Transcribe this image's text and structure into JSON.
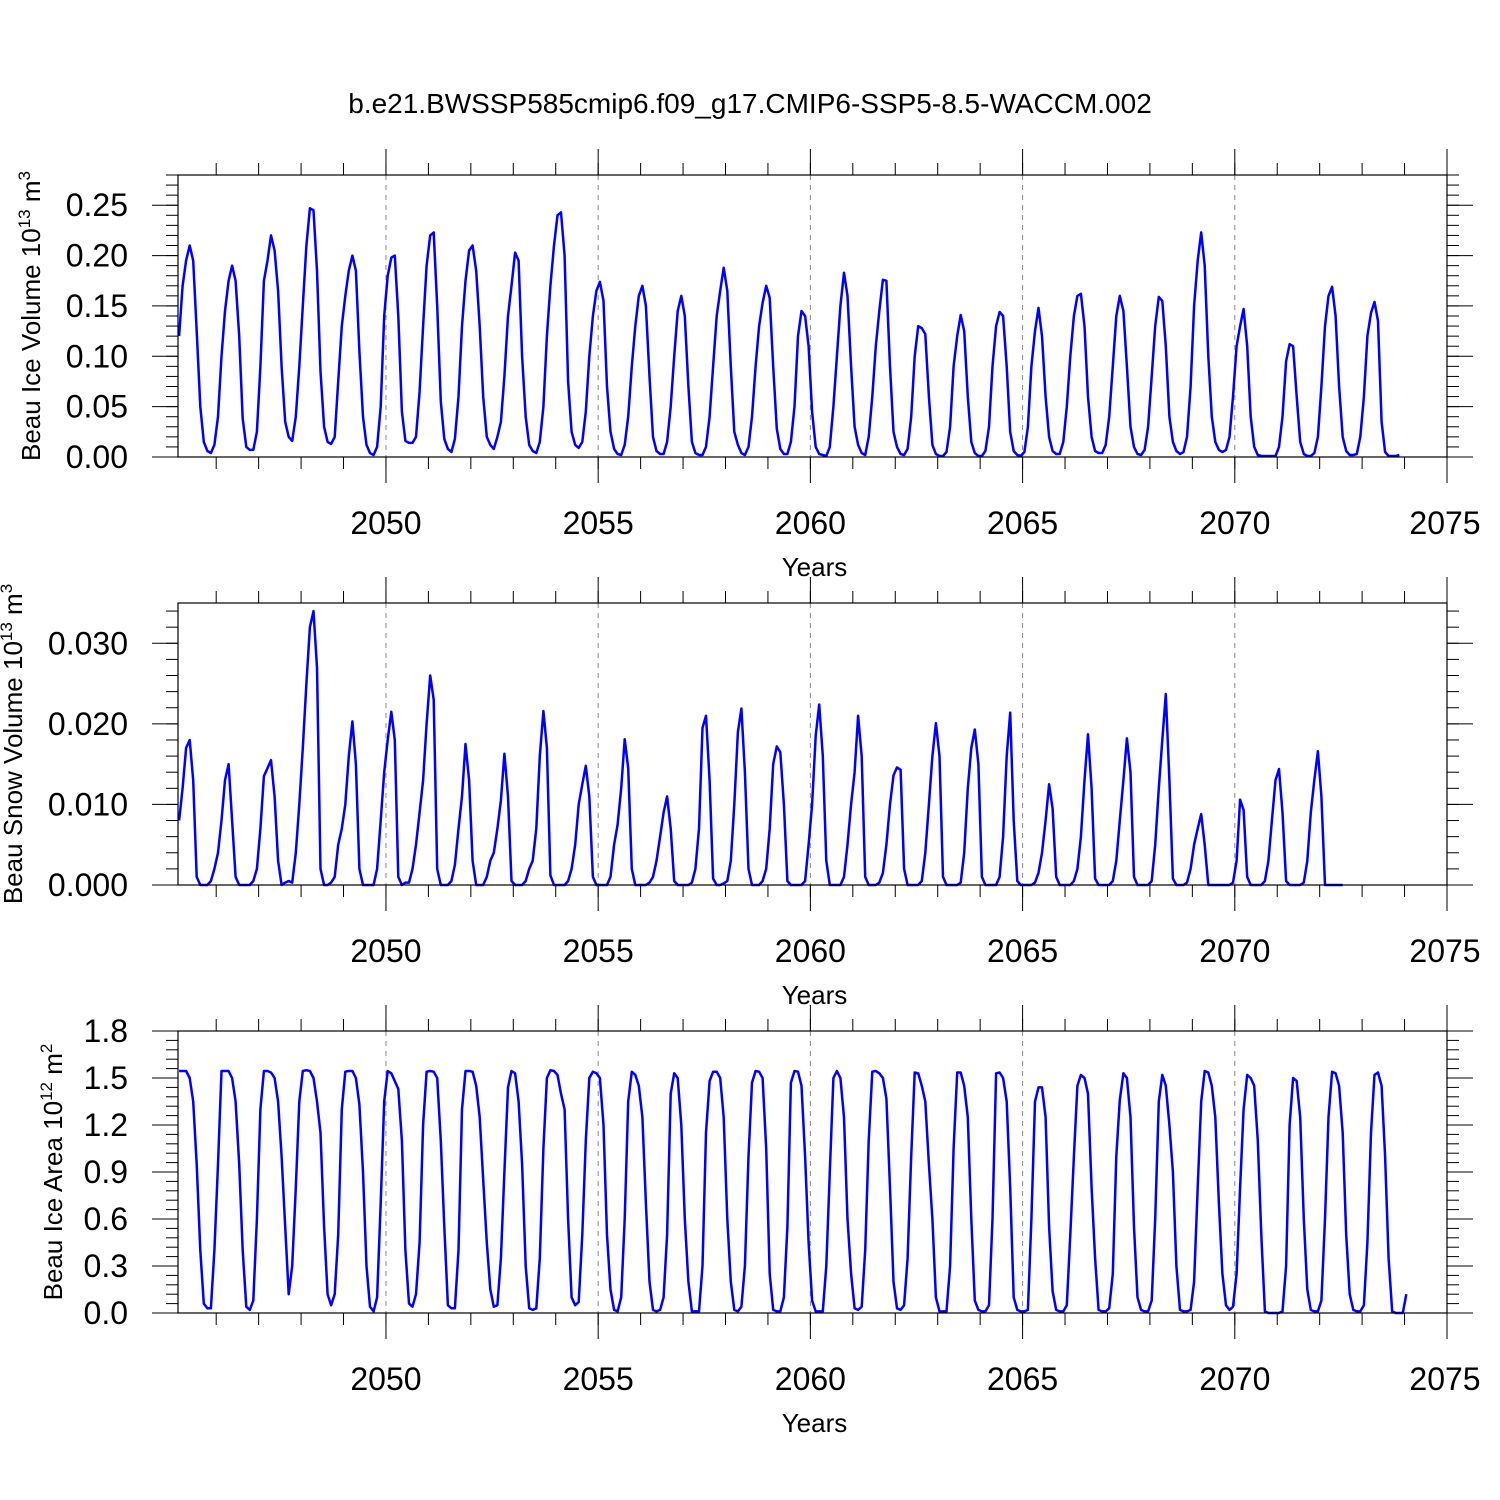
{
  "title": "b.e21.BWSSP585cmip6.f09_g17.CMIP6-SSP5-8.5-WACCM.002",
  "chart_data": [
    {
      "type": "line",
      "name": "ice-volume",
      "ylabel_main": "Beau Ice Volume 10",
      "ylabel_exp": "13",
      "ylabel_unit": " m",
      "ylabel_unit_exp": "3",
      "xlabel": "Years",
      "xlim": [
        2045.1,
        2075.0
      ],
      "ylim": [
        0.0,
        0.28
      ],
      "yticks": [
        0.0,
        0.05,
        0.1,
        0.15,
        0.2,
        0.25
      ],
      "ytick_labels": [
        "0.00",
        "0.05",
        "0.10",
        "0.15",
        "0.20",
        "0.25"
      ],
      "xticks": [
        2050,
        2055,
        2060,
        2065,
        2070,
        2075
      ],
      "xtick_labels": [
        "2050",
        "2055",
        "2060",
        "2065",
        "2070",
        "2075"
      ],
      "grid_x": [
        2050,
        2055,
        2060,
        2065,
        2070
      ],
      "line_color": "#0000ff",
      "start_year": 2045.125,
      "step": 0.0833333,
      "values": [
        0.12,
        0.17,
        0.195,
        0.21,
        0.195,
        0.125,
        0.05,
        0.015,
        0.006,
        0.004,
        0.012,
        0.04,
        0.1,
        0.145,
        0.175,
        0.19,
        0.175,
        0.12,
        0.038,
        0.01,
        0.007,
        0.007,
        0.025,
        0.09,
        0.175,
        0.195,
        0.22,
        0.205,
        0.165,
        0.09,
        0.035,
        0.02,
        0.016,
        0.04,
        0.09,
        0.15,
        0.21,
        0.247,
        0.245,
        0.185,
        0.085,
        0.03,
        0.015,
        0.013,
        0.02,
        0.075,
        0.13,
        0.16,
        0.185,
        0.2,
        0.185,
        0.105,
        0.04,
        0.012,
        0.004,
        0.002,
        0.01,
        0.05,
        0.14,
        0.18,
        0.198,
        0.2,
        0.14,
        0.045,
        0.016,
        0.014,
        0.014,
        0.02,
        0.065,
        0.13,
        0.19,
        0.22,
        0.223,
        0.15,
        0.055,
        0.018,
        0.008,
        0.005,
        0.018,
        0.06,
        0.13,
        0.175,
        0.205,
        0.21,
        0.185,
        0.13,
        0.06,
        0.02,
        0.012,
        0.008,
        0.02,
        0.035,
        0.08,
        0.14,
        0.17,
        0.203,
        0.195,
        0.1,
        0.04,
        0.012,
        0.006,
        0.004,
        0.015,
        0.05,
        0.12,
        0.17,
        0.21,
        0.24,
        0.243,
        0.2,
        0.075,
        0.025,
        0.012,
        0.009,
        0.015,
        0.045,
        0.1,
        0.14,
        0.165,
        0.174,
        0.155,
        0.07,
        0.025,
        0.008,
        0.003,
        0.002,
        0.012,
        0.04,
        0.09,
        0.13,
        0.16,
        0.17,
        0.15,
        0.08,
        0.02,
        0.006,
        0.003,
        0.003,
        0.015,
        0.05,
        0.1,
        0.145,
        0.16,
        0.14,
        0.07,
        0.015,
        0.004,
        0.002,
        0.002,
        0.01,
        0.04,
        0.09,
        0.14,
        0.165,
        0.188,
        0.165,
        0.09,
        0.025,
        0.012,
        0.004,
        0.002,
        0.01,
        0.04,
        0.09,
        0.13,
        0.153,
        0.17,
        0.158,
        0.09,
        0.028,
        0.008,
        0.003,
        0.003,
        0.015,
        0.05,
        0.12,
        0.145,
        0.14,
        0.11,
        0.045,
        0.01,
        0.003,
        0.002,
        0.001,
        0.01,
        0.05,
        0.1,
        0.15,
        0.183,
        0.16,
        0.09,
        0.03,
        0.012,
        0.004,
        0.002,
        0.02,
        0.06,
        0.11,
        0.145,
        0.176,
        0.175,
        0.09,
        0.025,
        0.01,
        0.003,
        0.002,
        0.008,
        0.04,
        0.1,
        0.13,
        0.128,
        0.122,
        0.06,
        0.012,
        0.003,
        0.001,
        0.001,
        0.005,
        0.03,
        0.09,
        0.12,
        0.141,
        0.125,
        0.06,
        0.015,
        0.004,
        0.001,
        0.001,
        0.006,
        0.03,
        0.09,
        0.13,
        0.144,
        0.14,
        0.09,
        0.025,
        0.006,
        0.002,
        0.001,
        0.005,
        0.03,
        0.09,
        0.125,
        0.148,
        0.12,
        0.06,
        0.02,
        0.006,
        0.003,
        0.003,
        0.015,
        0.05,
        0.1,
        0.14,
        0.16,
        0.162,
        0.13,
        0.06,
        0.02,
        0.006,
        0.004,
        0.004,
        0.012,
        0.04,
        0.09,
        0.14,
        0.16,
        0.145,
        0.09,
        0.03,
        0.01,
        0.003,
        0.002,
        0.007,
        0.03,
        0.08,
        0.13,
        0.159,
        0.155,
        0.11,
        0.04,
        0.015,
        0.006,
        0.003,
        0.005,
        0.02,
        0.07,
        0.15,
        0.195,
        0.223,
        0.19,
        0.1,
        0.04,
        0.015,
        0.007,
        0.005,
        0.007,
        0.02,
        0.06,
        0.11,
        0.13,
        0.147,
        0.11,
        0.04,
        0.01,
        0.002,
        0.001,
        0.001,
        0.001,
        0.001,
        0.001,
        0.01,
        0.04,
        0.095,
        0.112,
        0.11,
        0.06,
        0.015,
        0.003,
        0.001,
        0.001,
        0.004,
        0.02,
        0.07,
        0.13,
        0.16,
        0.169,
        0.14,
        0.07,
        0.02,
        0.006,
        0.002,
        0.002,
        0.003,
        0.02,
        0.06,
        0.12,
        0.143,
        0.154,
        0.135,
        0.035,
        0.005,
        0.001,
        0.001,
        0.001,
        0.002
      ]
    },
    {
      "type": "line",
      "name": "snow-volume",
      "ylabel_main": "Beau Snow Volume 10",
      "ylabel_exp": "13",
      "ylabel_unit": " m",
      "ylabel_unit_exp": "3",
      "xlabel": "Years",
      "xlim": [
        2045.1,
        2075.0
      ],
      "ylim": [
        0.0,
        0.035
      ],
      "yticks": [
        0.0,
        0.01,
        0.02,
        0.03
      ],
      "ytick_labels": [
        "0.000",
        "0.010",
        "0.020",
        "0.030"
      ],
      "xticks": [
        2050,
        2055,
        2060,
        2065,
        2070,
        2075
      ],
      "xtick_labels": [
        "2050",
        "2055",
        "2060",
        "2065",
        "2070",
        "2075"
      ],
      "grid_x": [
        2050,
        2055,
        2060,
        2065,
        2070
      ],
      "line_color": "#0000ff",
      "start_year": 2045.125,
      "step": 0.0833333,
      "values": [
        0.008,
        0.012,
        0.017,
        0.018,
        0.013,
        0.001,
        0.0,
        0.0,
        0.0,
        0.0005,
        0.002,
        0.004,
        0.008,
        0.013,
        0.015,
        0.008,
        0.001,
        0.0,
        0.0,
        0.0,
        0.0,
        0.0005,
        0.002,
        0.007,
        0.0135,
        0.0145,
        0.0155,
        0.011,
        0.003,
        0.0,
        0.0003,
        0.0005,
        0.0003,
        0.004,
        0.01,
        0.017,
        0.025,
        0.032,
        0.034,
        0.027,
        0.002,
        0.0,
        0.0,
        0.0003,
        0.001,
        0.005,
        0.007,
        0.01,
        0.016,
        0.0203,
        0.015,
        0.002,
        0.0,
        0.0,
        0.0,
        0.0,
        0.002,
        0.008,
        0.014,
        0.018,
        0.0215,
        0.018,
        0.001,
        0.0,
        0.0003,
        0.0003,
        0.002,
        0.005,
        0.009,
        0.013,
        0.02,
        0.026,
        0.023,
        0.002,
        0.0,
        0.0,
        0.0,
        0.0005,
        0.0025,
        0.007,
        0.011,
        0.0175,
        0.013,
        0.003,
        0.0,
        0.0,
        0.0,
        0.001,
        0.003,
        0.004,
        0.007,
        0.0105,
        0.0163,
        0.011,
        0.0005,
        0.0,
        0.0,
        0.0,
        0.0005,
        0.002,
        0.003,
        0.007,
        0.016,
        0.0216,
        0.017,
        0.0012,
        0.0,
        0.0,
        0.0,
        0.0,
        0.0005,
        0.002,
        0.005,
        0.01,
        0.0125,
        0.0148,
        0.011,
        0.001,
        0.0,
        0.0,
        0.0,
        0.0,
        0.001,
        0.005,
        0.0075,
        0.012,
        0.0181,
        0.0145,
        0.002,
        0.0,
        0.0,
        0.0,
        0.0,
        0.0003,
        0.001,
        0.003,
        0.006,
        0.009,
        0.011,
        0.007,
        0.0005,
        0.0,
        0.0,
        0.0,
        0.0,
        0.0003,
        0.002,
        0.007,
        0.0195,
        0.021,
        0.013,
        0.0008,
        0.0,
        0.0,
        0.0002,
        0.0005,
        0.003,
        0.01,
        0.019,
        0.0219,
        0.014,
        0.002,
        0.0,
        0.0,
        0.0,
        0.0005,
        0.002,
        0.007,
        0.015,
        0.0172,
        0.0165,
        0.01,
        0.0005,
        0.0,
        0.0,
        0.0,
        0.0,
        0.0005,
        0.005,
        0.01,
        0.0185,
        0.0224,
        0.016,
        0.003,
        0.0,
        0.0,
        0.0,
        0.0,
        0.001,
        0.005,
        0.01,
        0.014,
        0.021,
        0.016,
        0.001,
        0.0,
        0.0,
        0.0,
        0.0003,
        0.0015,
        0.005,
        0.01,
        0.0136,
        0.0146,
        0.0143,
        0.002,
        0.0,
        0.0,
        0.0,
        0.0,
        0.0005,
        0.004,
        0.01,
        0.016,
        0.0201,
        0.016,
        0.001,
        0.0,
        0.0,
        0.0,
        0.0,
        0.0003,
        0.004,
        0.012,
        0.017,
        0.0193,
        0.015,
        0.001,
        0.0,
        0.0,
        0.0,
        0.0,
        0.001,
        0.006,
        0.016,
        0.0214,
        0.008,
        0.0005,
        0.0,
        0.0,
        0.0,
        0.0,
        0.0003,
        0.0015,
        0.004,
        0.008,
        0.0125,
        0.0095,
        0.001,
        0.0,
        0.0,
        0.0,
        0.0,
        0.0005,
        0.002,
        0.006,
        0.013,
        0.0187,
        0.012,
        0.0008,
        0.0,
        0.0,
        0.0,
        0.0,
        0.0005,
        0.003,
        0.008,
        0.013,
        0.0182,
        0.014,
        0.001,
        0.0,
        0.0,
        0.0,
        0.0,
        0.0005,
        0.005,
        0.012,
        0.018,
        0.0237,
        0.013,
        0.0008,
        0.0,
        0.0,
        0.0,
        0.0003,
        0.002,
        0.005,
        0.007,
        0.0088,
        0.005,
        0.0,
        0.0,
        0.0,
        0.0,
        0.0,
        0.0,
        0.0,
        0.0003,
        0.003,
        0.0106,
        0.0093,
        0.001,
        0.0,
        0.0,
        0.0,
        0.0,
        0.0005,
        0.003,
        0.008,
        0.013,
        0.0144,
        0.009,
        0.0005,
        0.0,
        0.0,
        0.0,
        0.0,
        0.0003,
        0.003,
        0.009,
        0.0131,
        0.0166,
        0.011,
        0.0,
        0.0,
        0.0,
        0.0,
        0.0,
        0.0
      ]
    },
    {
      "type": "line",
      "name": "ice-area",
      "ylabel_main": "Beau Ice Area 10",
      "ylabel_exp": "12",
      "ylabel_unit": " m",
      "ylabel_unit_exp": "2",
      "xlabel": "Years",
      "xlim": [
        2045.1,
        2075.0
      ],
      "ylim": [
        0.0,
        1.8
      ],
      "yticks": [
        0.0,
        0.3,
        0.6,
        0.9,
        1.2,
        1.5,
        1.8
      ],
      "ytick_labels": [
        "0.0",
        "0.3",
        "0.6",
        "0.9",
        "1.2",
        "1.5",
        "1.8"
      ],
      "xticks": [
        2050,
        2055,
        2060,
        2065,
        2070,
        2075
      ],
      "xtick_labels": [
        "2050",
        "2055",
        "2060",
        "2065",
        "2070",
        "2075"
      ],
      "grid_x": [
        2050,
        2055,
        2060,
        2065,
        2070
      ],
      "line_color": "#0000ff",
      "start_year": 2045.125,
      "step": 0.0833333,
      "values": [
        1.545,
        1.545,
        1.545,
        1.5,
        1.35,
        0.95,
        0.4,
        0.06,
        0.03,
        0.03,
        0.4,
        0.95,
        1.545,
        1.545,
        1.545,
        1.5,
        1.35,
        0.95,
        0.4,
        0.04,
        0.02,
        0.08,
        0.6,
        1.3,
        1.545,
        1.545,
        1.535,
        1.5,
        1.35,
        1.0,
        0.55,
        0.12,
        0.3,
        0.8,
        1.35,
        1.545,
        1.55,
        1.545,
        1.5,
        1.35,
        1.15,
        0.55,
        0.12,
        0.05,
        0.12,
        0.5,
        1.3,
        1.54,
        1.545,
        1.545,
        1.5,
        1.33,
        0.9,
        0.3,
        0.04,
        0.01,
        0.1,
        0.7,
        1.35,
        1.545,
        1.53,
        1.48,
        1.43,
        1.1,
        0.4,
        0.06,
        0.04,
        0.12,
        0.45,
        1.2,
        1.54,
        1.545,
        1.54,
        1.5,
        1.1,
        0.55,
        0.05,
        0.03,
        0.03,
        0.4,
        1.3,
        1.545,
        1.545,
        1.54,
        1.45,
        1.25,
        0.85,
        0.45,
        0.15,
        0.04,
        0.05,
        0.35,
        0.9,
        1.44,
        1.545,
        1.53,
        1.35,
        0.95,
        0.3,
        0.03,
        0.02,
        0.03,
        0.35,
        1.05,
        1.5,
        1.55,
        1.545,
        1.52,
        1.4,
        1.3,
        0.6,
        0.1,
        0.05,
        0.07,
        0.5,
        1.1,
        1.5,
        1.54,
        1.53,
        1.5,
        1.2,
        0.5,
        0.15,
        0.02,
        0.01,
        0.1,
        0.6,
        1.35,
        1.54,
        1.52,
        1.45,
        1.25,
        0.7,
        0.2,
        0.02,
        0.01,
        0.02,
        0.1,
        0.5,
        1.4,
        1.53,
        1.5,
        1.2,
        0.6,
        0.2,
        0.01,
        0.01,
        0.01,
        0.3,
        1.15,
        1.48,
        1.54,
        1.54,
        1.5,
        1.25,
        0.6,
        0.2,
        0.02,
        0.01,
        0.04,
        0.3,
        1.0,
        1.47,
        1.545,
        1.54,
        1.5,
        1.05,
        0.25,
        0.02,
        0.01,
        0.01,
        0.1,
        0.55,
        1.47,
        1.545,
        1.54,
        1.45,
        1.0,
        0.45,
        0.08,
        0.01,
        0.01,
        0.01,
        0.3,
        0.9,
        1.5,
        1.545,
        1.5,
        1.25,
        0.6,
        0.25,
        0.03,
        0.02,
        0.04,
        0.4,
        1.1,
        1.54,
        1.545,
        1.53,
        1.5,
        1.37,
        0.8,
        0.2,
        0.03,
        0.02,
        0.05,
        0.35,
        1.0,
        1.535,
        1.53,
        1.45,
        1.35,
        0.95,
        0.6,
        0.1,
        0.01,
        0.01,
        0.01,
        0.3,
        1.05,
        1.535,
        1.535,
        1.45,
        1.25,
        0.6,
        0.08,
        0.02,
        0.01,
        0.01,
        0.05,
        0.6,
        1.53,
        1.535,
        1.5,
        1.35,
        0.8,
        0.1,
        0.02,
        0.01,
        0.01,
        0.02,
        0.6,
        1.35,
        1.44,
        1.44,
        1.25,
        0.55,
        0.14,
        0.02,
        0.01,
        0.01,
        0.05,
        0.5,
        1.0,
        1.45,
        1.52,
        1.5,
        1.4,
        0.8,
        0.35,
        0.02,
        0.01,
        0.01,
        0.03,
        0.25,
        1.0,
        1.36,
        1.53,
        1.5,
        1.25,
        0.55,
        0.1,
        0.02,
        0.01,
        0.01,
        0.08,
        0.6,
        1.35,
        1.52,
        1.45,
        1.2,
        0.9,
        0.3,
        0.02,
        0.01,
        0.01,
        0.02,
        0.2,
        0.8,
        1.35,
        1.545,
        1.535,
        1.45,
        1.25,
        0.7,
        0.25,
        0.05,
        0.02,
        0.04,
        0.25,
        0.8,
        1.3,
        1.52,
        1.5,
        1.45,
        1.1,
        0.5,
        0.01,
        0.0,
        0.0,
        0.0,
        0.0,
        0.01,
        0.3,
        1.2,
        1.5,
        1.48,
        1.25,
        0.6,
        0.15,
        0.02,
        0.01,
        0.01,
        0.08,
        0.6,
        1.25,
        1.54,
        1.53,
        1.45,
        1.15,
        0.5,
        0.12,
        0.02,
        0.01,
        0.01,
        0.05,
        0.45,
        1.15,
        1.52,
        1.535,
        1.45,
        1.0,
        0.35,
        0.01,
        0.0,
        0.0,
        0.0,
        0.12
      ]
    }
  ]
}
